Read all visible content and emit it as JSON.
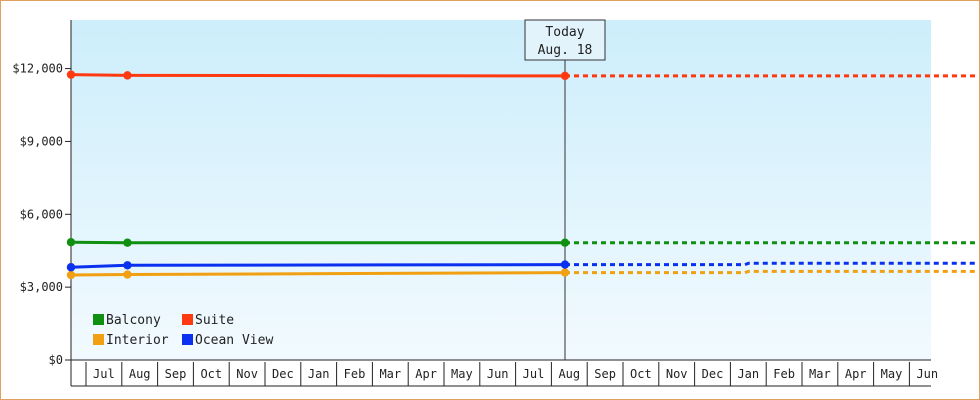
{
  "chart_data": {
    "type": "line",
    "y_axis": {
      "min": 0,
      "max": 14000,
      "tick_values": [
        0,
        3000,
        6000,
        9000,
        12000
      ],
      "tick_labels": [
        "$0",
        "$3,000",
        "$6,000",
        "$9,000",
        "$12,000"
      ]
    },
    "x_axis": {
      "tick_labels": [
        "Jul",
        "Aug",
        "Sep",
        "Oct",
        "Nov",
        "Dec",
        "Jan",
        "Feb",
        "Mar",
        "Apr",
        "May",
        "Jun",
        "Jul",
        "Aug",
        "Sep",
        "Oct",
        "Nov",
        "Dec",
        "Jan",
        "Feb",
        "Mar",
        "Apr",
        "May",
        "Jun"
      ]
    },
    "today_marker": {
      "line1": "Today",
      "line2": "Aug. 18",
      "x": 14.0
    },
    "series": [
      {
        "name": "Balcony",
        "color": "#109010",
        "points": [
          [
            0,
            4850
          ],
          [
            1.6,
            4830
          ],
          [
            14.0,
            4830
          ]
        ],
        "projection": [
          [
            14.0,
            4830
          ],
          [
            25.7,
            4830
          ]
        ]
      },
      {
        "name": "Suite",
        "color": "#ff3a10",
        "points": [
          [
            0,
            11750
          ],
          [
            1.6,
            11720
          ],
          [
            14.0,
            11700
          ]
        ],
        "projection": [
          [
            14.0,
            11700
          ],
          [
            25.7,
            11700
          ]
        ]
      },
      {
        "name": "Interior",
        "color": "#f0a010",
        "points": [
          [
            0,
            3500
          ],
          [
            1.6,
            3520
          ],
          [
            14.0,
            3600
          ]
        ],
        "projection": [
          [
            14.0,
            3600
          ],
          [
            19.1,
            3600
          ],
          [
            19.2,
            3650
          ],
          [
            25.7,
            3650
          ]
        ]
      },
      {
        "name": "Ocean View",
        "color": "#0a30f0",
        "points": [
          [
            0,
            3820
          ],
          [
            1.6,
            3900
          ],
          [
            14.0,
            3930
          ]
        ],
        "projection": [
          [
            14.0,
            3930
          ],
          [
            19.1,
            3930
          ],
          [
            19.2,
            3980
          ],
          [
            25.7,
            3980
          ]
        ]
      }
    ],
    "legend": {
      "placement": "bottom-left",
      "columns": 2,
      "order": [
        "Balcony",
        "Suite",
        "Interior",
        "Ocean View"
      ]
    },
    "background_gradient": [
      "#cdeefb",
      "#f2faff"
    ],
    "grid": false
  }
}
